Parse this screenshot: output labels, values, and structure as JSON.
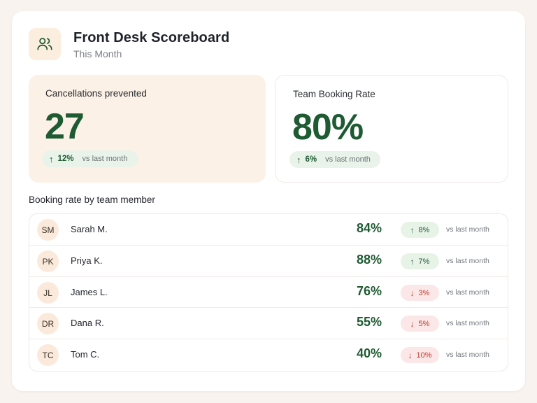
{
  "header": {
    "icon": "users-icon",
    "title": "Front Desk Scoreboard",
    "subtitle": "This Month"
  },
  "stats": [
    {
      "label": "Cancellations prevented",
      "value": "27",
      "delta": "12%",
      "direction": "up",
      "context": "vs last month"
    },
    {
      "label": "Team Booking Rate",
      "value": "80%",
      "delta": "6%",
      "direction": "up",
      "context": "vs last month"
    }
  ],
  "section_title": "Booking rate by team member",
  "members": [
    {
      "initials": "SM",
      "name": "Sarah M.",
      "rate": "84%",
      "delta": "8%",
      "direction": "up",
      "context": "vs last month"
    },
    {
      "initials": "PK",
      "name": "Priya K.",
      "rate": "88%",
      "delta": "7%",
      "direction": "up",
      "context": "vs last month"
    },
    {
      "initials": "JL",
      "name": "James L.",
      "rate": "76%",
      "delta": "3%",
      "direction": "down",
      "context": "vs last month"
    },
    {
      "initials": "DR",
      "name": "Dana R.",
      "rate": "55%",
      "delta": "5%",
      "direction": "down",
      "context": "vs last month"
    },
    {
      "initials": "TC",
      "name": "Tom C.",
      "rate": "40%",
      "delta": "10%",
      "direction": "down",
      "context": "vs last month"
    }
  ],
  "colors": {
    "accent_green": "#1e5a32",
    "down_red": "#c0392b",
    "warm_bg": "#fcf1e6",
    "page_bg": "#f8f3ee"
  }
}
